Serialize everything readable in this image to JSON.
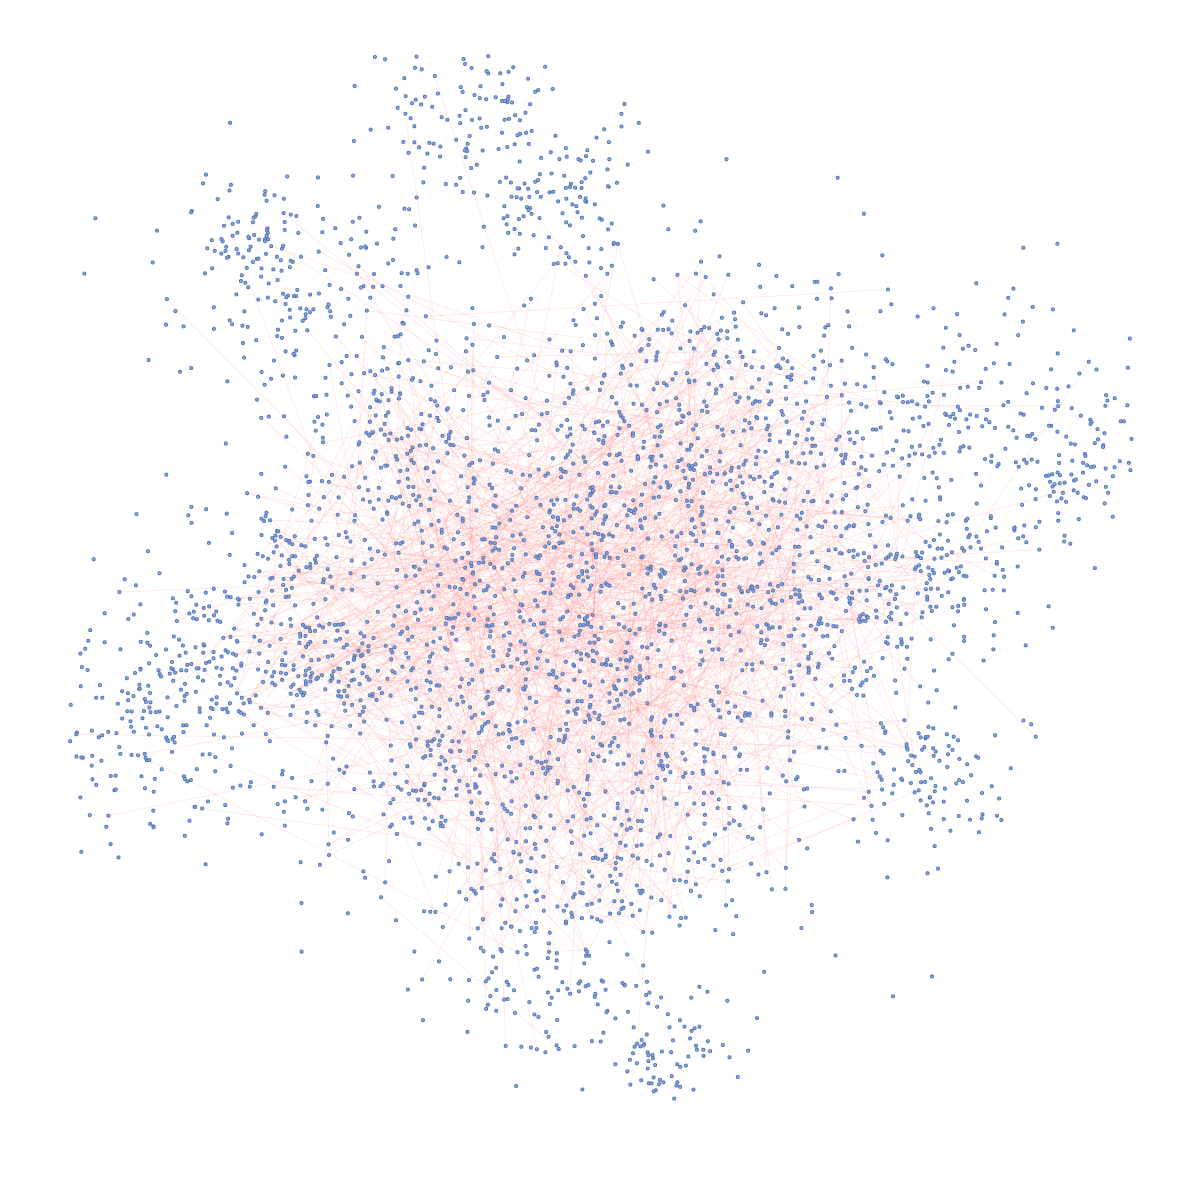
{
  "diagram": {
    "type": "network-graph",
    "background_color": "#ffffff",
    "node_color": "#4a6fb5",
    "node_fill": "#8fa8d8",
    "edge_color": "#ff8a8a",
    "labels_shown": false
  }
}
